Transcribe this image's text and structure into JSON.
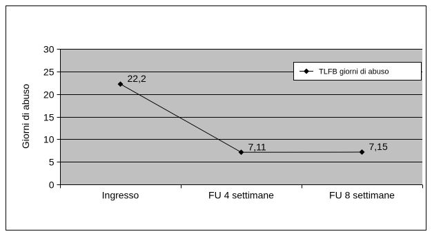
{
  "chart_data": {
    "type": "line",
    "categories": [
      "Ingresso",
      "FU 4 settimane",
      "FU 8 settimane"
    ],
    "series": [
      {
        "name": "TLFB giorni di abuso",
        "values": [
          22.2,
          7.11,
          7.15
        ],
        "labels": [
          "22,2",
          "7,11",
          "7,15"
        ]
      }
    ],
    "ylabel": "Giorni di abuso",
    "ylim": [
      0,
      30
    ],
    "yticks": [
      0,
      5,
      10,
      15,
      20,
      25,
      30
    ],
    "grid": true,
    "legend_position": "top-right",
    "colors": {
      "plot_background": "#c0c0c0",
      "line": "#000000",
      "gridline": "#000000"
    }
  }
}
